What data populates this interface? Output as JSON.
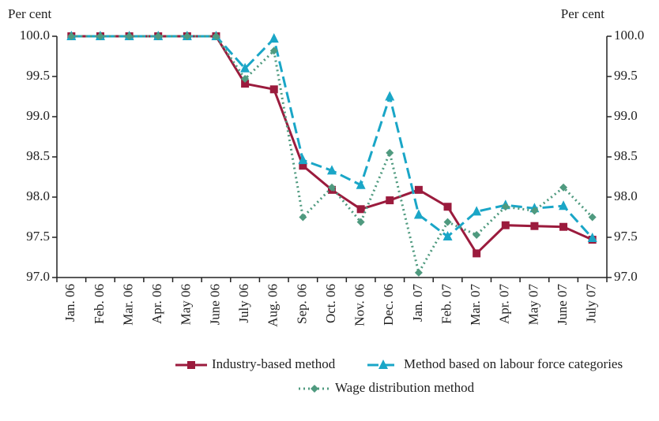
{
  "chart_data": {
    "type": "line",
    "y_label": "Per cent",
    "y2_label": "Per cent",
    "categories": [
      "Jan. 06",
      "Feb. 06",
      "Mar. 06",
      "Apr. 06",
      "May 06",
      "June 06",
      "July 06",
      "Aug. 06",
      "Sep. 06",
      "Oct. 06",
      "Nov. 06",
      "Dec. 06",
      "Jan. 07",
      "Feb. 07",
      "Mar. 07",
      "Apr. 07",
      "May 07",
      "June 07",
      "July 07"
    ],
    "series": [
      {
        "name": "Industry-based method",
        "color": "#9b1b3d",
        "dash": "solid",
        "marker": "square",
        "values": [
          100,
          100,
          100,
          100,
          100,
          100,
          99.41,
          99.34,
          98.39,
          98.09,
          97.85,
          97.96,
          98.09,
          97.88,
          97.3,
          97.65,
          97.64,
          97.63,
          97.47
        ]
      },
      {
        "name": "Method based on labour force categories",
        "color": "#1aa6c7",
        "dash": "dashed",
        "marker": "triangle",
        "values": [
          100,
          100,
          100,
          100,
          100,
          100,
          99.6,
          99.97,
          98.46,
          98.33,
          98.15,
          99.25,
          97.78,
          97.51,
          97.82,
          97.9,
          97.86,
          97.89,
          97.49
        ]
      },
      {
        "name": "Wage distribution method",
        "color": "#4f9a7f",
        "dash": "dotted",
        "marker": "diamond",
        "values": [
          100,
          100,
          100,
          100,
          100,
          100,
          99.47,
          99.82,
          97.75,
          98.12,
          97.69,
          98.55,
          97.06,
          97.69,
          97.53,
          97.88,
          97.83,
          98.12,
          97.75
        ]
      }
    ],
    "ylim": [
      97,
      100
    ],
    "yticks": [
      {
        "value": 97,
        "label": "97.0"
      },
      97.5,
      {
        "value": 98,
        "label": "98.0"
      },
      98.5,
      {
        "value": 99,
        "label": "99.0"
      },
      99.5,
      {
        "value": 100,
        "label": "100.0"
      }
    ],
    "y2lim": [
      97,
      100
    ],
    "y2ticks": [
      {
        "value": 97,
        "label": "97.0"
      },
      97.5,
      {
        "value": 98,
        "label": "98.0"
      },
      98.5,
      {
        "value": 99,
        "label": "99.0"
      },
      99.5,
      {
        "value": 100,
        "label": "100.0"
      }
    ],
    "grid": false,
    "legend": "bottom"
  }
}
